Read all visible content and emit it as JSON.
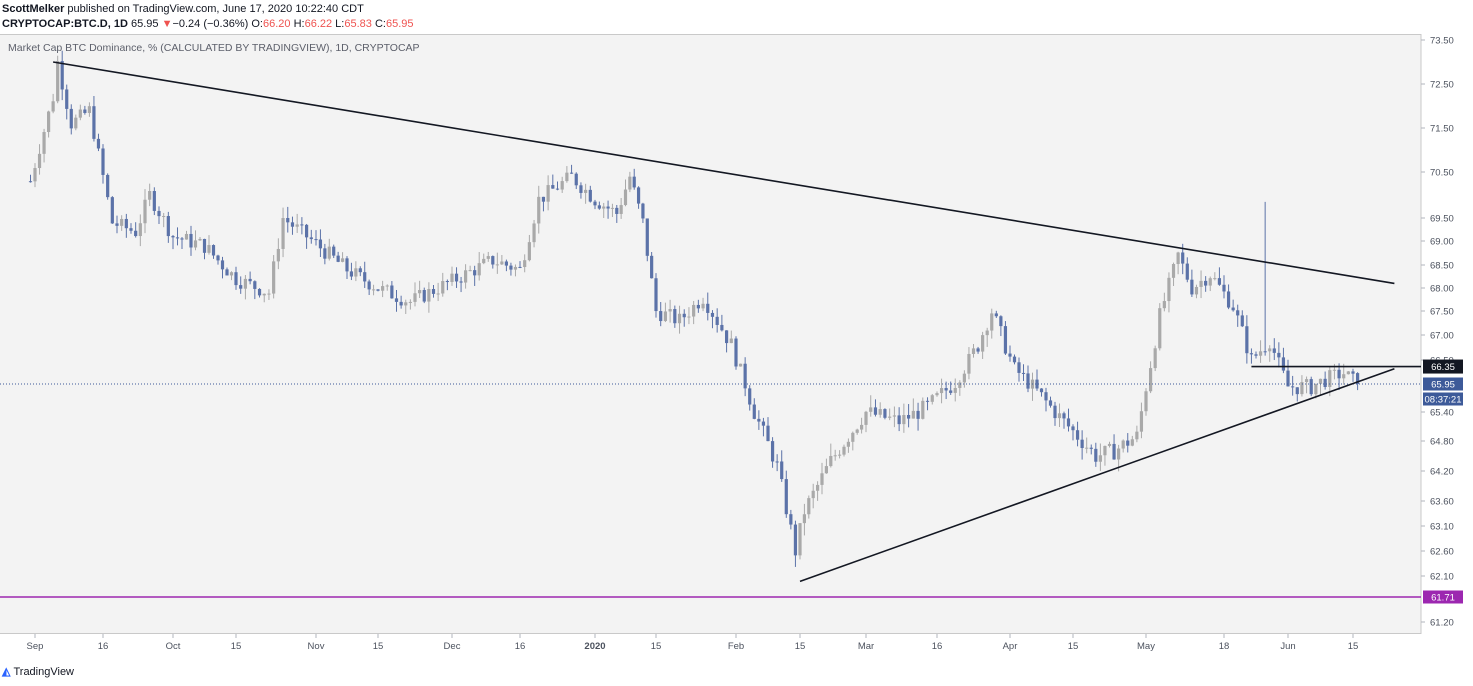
{
  "header": {
    "author": "ScottMelker",
    "published": "published on TradingView.com, June 17, 2020 10:22:40 CDT",
    "symbol": "CRYPTOCAP:BTC.D, 1D",
    "last": "65.95",
    "change_arrow": "▼",
    "change": "−0.24 (−0.36%)",
    "o_label": "O:",
    "o": "66.20",
    "h_label": "H:",
    "h": "66.22",
    "l_label": "L:",
    "l": "65.83",
    "c_label": "C:",
    "c": "65.95"
  },
  "legend": "Market Cap BTC Dominance, % (CALCULATED BY TRADINGVIEW), 1D, CRYPTOCAP",
  "footer": {
    "brand": "TradingView",
    "logo_icon": "tradingview-logo-icon"
  },
  "colors": {
    "up": "#a9a9a9",
    "down": "#5b72a8",
    "support": "#9c27b0",
    "trend": "#131722",
    "accent": "#2962ff",
    "pane_bg": "#f3f3f3"
  },
  "chart_data": {
    "type": "candlestick",
    "title": "Market Cap BTC Dominance, % (CALCULATED BY TRADINGVIEW), 1D, CRYPTOCAP",
    "y_ticks": [
      "73.50",
      "72.50",
      "71.50",
      "70.50",
      "69.50",
      "69.00",
      "68.50",
      "68.00",
      "67.50",
      "67.00",
      "66.50",
      "65.95",
      "65.40",
      "64.80",
      "64.20",
      "63.60",
      "63.10",
      "62.60",
      "62.10",
      "61.20"
    ],
    "ylim": [
      61.0,
      73.6
    ],
    "x_ticks": [
      "Sep",
      "16",
      "Oct",
      "15",
      "Nov",
      "15",
      "Dec",
      "16",
      "2020",
      "15",
      "Feb",
      "15",
      "Mar",
      "16",
      "Apr",
      "15",
      "May",
      "18",
      "Jun",
      "15"
    ],
    "x_tick_dates": [
      "2019-09-01",
      "2019-09-16",
      "2019-10-01",
      "2019-10-15",
      "2019-11-01",
      "2019-11-15",
      "2019-12-01",
      "2019-12-16",
      "2020-01-01",
      "2020-01-15",
      "2020-02-01",
      "2020-02-15",
      "2020-03-01",
      "2020-03-16",
      "2020-04-01",
      "2020-04-15",
      "2020-05-01",
      "2020-05-18",
      "2020-06-01",
      "2020-06-15"
    ],
    "last_price": {
      "label": "65.95",
      "value": 65.95,
      "countdown": "08:37:21"
    },
    "horizontal_lines": [
      {
        "label": "66.35",
        "value": 66.35,
        "from": "2020-05-24"
      },
      {
        "label": "61.71",
        "value": 61.71
      }
    ],
    "trendlines": [
      {
        "name": "upper",
        "from": [
          "2019-09-05",
          73.0
        ],
        "to": [
          "2020-06-24",
          68.1
        ]
      },
      {
        "name": "lower",
        "from": [
          "2020-02-15",
          62.0
        ],
        "to": [
          "2020-06-24",
          66.3
        ]
      }
    ],
    "closes": [
      {
        "date": "2019-08-31",
        "c": 70.3
      },
      {
        "date": "2019-09-05",
        "c": 72.2
      },
      {
        "date": "2019-09-06",
        "c": 73.0
      },
      {
        "date": "2019-09-09",
        "c": 71.6
      },
      {
        "date": "2019-09-13",
        "c": 71.9
      },
      {
        "date": "2019-09-18",
        "c": 69.4
      },
      {
        "date": "2019-09-23",
        "c": 69.2
      },
      {
        "date": "2019-09-26",
        "c": 70.0
      },
      {
        "date": "2019-10-01",
        "c": 69.1
      },
      {
        "date": "2019-10-08",
        "c": 68.9
      },
      {
        "date": "2019-10-15",
        "c": 68.2
      },
      {
        "date": "2019-10-22",
        "c": 67.9
      },
      {
        "date": "2019-10-25",
        "c": 69.5
      },
      {
        "date": "2019-10-30",
        "c": 69.1
      },
      {
        "date": "2019-11-08",
        "c": 68.4
      },
      {
        "date": "2019-11-15",
        "c": 68.0
      },
      {
        "date": "2019-11-22",
        "c": 67.7
      },
      {
        "date": "2019-11-30",
        "c": 68.1
      },
      {
        "date": "2019-12-10",
        "c": 68.6
      },
      {
        "date": "2019-12-16",
        "c": 68.4
      },
      {
        "date": "2019-12-20",
        "c": 69.9
      },
      {
        "date": "2019-12-27",
        "c": 70.4
      },
      {
        "date": "2020-01-01",
        "c": 69.9
      },
      {
        "date": "2020-01-06",
        "c": 69.6
      },
      {
        "date": "2020-01-09",
        "c": 70.4
      },
      {
        "date": "2020-01-12",
        "c": 69.4
      },
      {
        "date": "2020-01-15",
        "c": 67.5
      },
      {
        "date": "2020-01-20",
        "c": 67.3
      },
      {
        "date": "2020-01-25",
        "c": 67.8
      },
      {
        "date": "2020-01-31",
        "c": 66.8
      },
      {
        "date": "2020-02-05",
        "c": 65.4
      },
      {
        "date": "2020-02-10",
        "c": 64.3
      },
      {
        "date": "2020-02-14",
        "c": 62.6
      },
      {
        "date": "2020-02-16",
        "c": 63.4
      },
      {
        "date": "2020-02-22",
        "c": 64.4
      },
      {
        "date": "2020-03-01",
        "c": 65.4
      },
      {
        "date": "2020-03-08",
        "c": 65.2
      },
      {
        "date": "2020-03-14",
        "c": 65.5
      },
      {
        "date": "2020-03-20",
        "c": 66.0
      },
      {
        "date": "2020-03-25",
        "c": 66.8
      },
      {
        "date": "2020-03-28",
        "c": 67.5
      },
      {
        "date": "2020-04-02",
        "c": 66.3
      },
      {
        "date": "2020-04-08",
        "c": 65.7
      },
      {
        "date": "2020-04-15",
        "c": 65.0
      },
      {
        "date": "2020-04-20",
        "c": 64.5
      },
      {
        "date": "2020-04-24",
        "c": 64.6
      },
      {
        "date": "2020-04-29",
        "c": 64.9
      },
      {
        "date": "2020-05-04",
        "c": 67.4
      },
      {
        "date": "2020-05-08",
        "c": 68.7
      },
      {
        "date": "2020-05-11",
        "c": 68.0
      },
      {
        "date": "2020-05-15",
        "c": 68.3
      },
      {
        "date": "2020-05-20",
        "c": 67.6
      },
      {
        "date": "2020-05-24",
        "c": 66.5
      },
      {
        "date": "2020-05-28",
        "c": 66.9
      },
      {
        "date": "2020-06-01",
        "c": 65.9
      },
      {
        "date": "2020-06-06",
        "c": 65.9
      },
      {
        "date": "2020-06-10",
        "c": 66.1
      },
      {
        "date": "2020-06-13",
        "c": 66.2
      },
      {
        "date": "2020-06-16",
        "c": 65.95
      }
    ]
  }
}
